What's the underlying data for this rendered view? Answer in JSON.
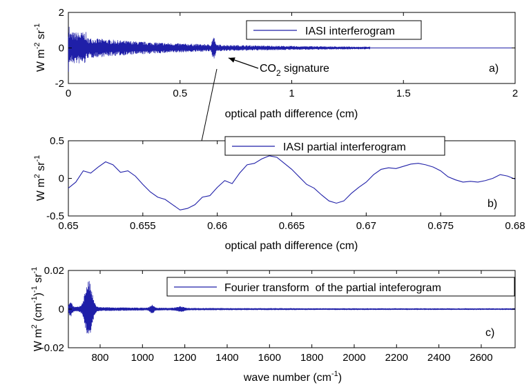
{
  "chart_data": [
    {
      "type": "line",
      "panel_label": "a)",
      "xlabel": "optical path difference (cm)",
      "ylabel": "W m⁻² sr⁻¹",
      "xlim": [
        0,
        2
      ],
      "ylim": [
        -2,
        2
      ],
      "xticks": [
        "0",
        "0.5",
        "1",
        "1.5",
        "2"
      ],
      "yticks": [
        "2",
        "0",
        "-2"
      ],
      "grid": false,
      "legend": "top-right",
      "series": [
        {
          "name": "IASI interferogram",
          "color": "#1f1fa8",
          "shape": "interferogram decaying from about ±1.2 at 0 cm to near 0 beyond 0.8 cm, trace ends near 1.35 cm; flat 0 baseline across full range"
        }
      ],
      "annotation": {
        "text_main": "CO",
        "text_sub": "2",
        "text_rest": " signature",
        "points_to_x": 0.65
      }
    },
    {
      "type": "line",
      "panel_label": "b)",
      "xlabel": "optical path difference (cm)",
      "ylabel": "W m⁻² sr⁻¹",
      "xlim": [
        0.65,
        0.68
      ],
      "ylim": [
        -0.5,
        0.5
      ],
      "xticks": [
        "0.65",
        "0.655",
        "0.66",
        "0.665",
        "0.67",
        "0.675",
        "0.68"
      ],
      "yticks": [
        "0.5",
        "0",
        "-0.5"
      ],
      "grid": false,
      "legend": "top-center",
      "series": [
        {
          "name": "IASI partial interferogram",
          "color": "#1f1fa8",
          "x": [
            0.65,
            0.6505,
            0.651,
            0.6515,
            0.652,
            0.6525,
            0.653,
            0.6535,
            0.654,
            0.6545,
            0.655,
            0.6555,
            0.656,
            0.6565,
            0.657,
            0.6575,
            0.658,
            0.6585,
            0.659,
            0.6595,
            0.66,
            0.6605,
            0.661,
            0.6615,
            0.662,
            0.6625,
            0.663,
            0.6635,
            0.664,
            0.6645,
            0.665,
            0.6655,
            0.666,
            0.6665,
            0.667,
            0.6675,
            0.668,
            0.6685,
            0.669,
            0.6695,
            0.67,
            0.6705,
            0.671,
            0.6715,
            0.672,
            0.6725,
            0.673,
            0.6735,
            0.674,
            0.6745,
            0.675,
            0.6755,
            0.676,
            0.6765,
            0.677,
            0.6775,
            0.678,
            0.6785,
            0.679,
            0.6795,
            0.68
          ],
          "y": [
            -0.13,
            -0.05,
            0.1,
            0.07,
            0.15,
            0.22,
            0.18,
            0.08,
            0.1,
            0.03,
            -0.08,
            -0.18,
            -0.25,
            -0.28,
            -0.35,
            -0.42,
            -0.4,
            -0.35,
            -0.25,
            -0.23,
            -0.12,
            -0.03,
            -0.07,
            0.07,
            0.18,
            0.2,
            0.26,
            0.3,
            0.28,
            0.2,
            0.12,
            0.02,
            -0.08,
            -0.13,
            -0.22,
            -0.3,
            -0.33,
            -0.3,
            -0.2,
            -0.12,
            -0.05,
            0.05,
            0.12,
            0.14,
            0.13,
            0.16,
            0.19,
            0.2,
            0.18,
            0.15,
            0.1,
            0.02,
            -0.02,
            -0.05,
            -0.04,
            -0.05,
            -0.03,
            0.0,
            0.05,
            0.03,
            -0.01
          ]
        }
      ]
    },
    {
      "type": "line",
      "panel_label": "c)",
      "xlabel": "wave number (cm⁻¹)",
      "ylabel": "W m² (cm⁻¹)⁻¹ sr⁻¹",
      "xlim": [
        650,
        2760
      ],
      "ylim": [
        -0.02,
        0.02
      ],
      "xticks": [
        "800",
        "1000",
        "1200",
        "1400",
        "1600",
        "1800",
        "2000",
        "2200",
        "2400",
        "2600"
      ],
      "yticks": [
        "0.02",
        "0",
        "-0.02"
      ],
      "grid": false,
      "legend": "top-right",
      "series": [
        {
          "name": "Fourier transform  of the partial inteferogram",
          "color": "#1f1fa8",
          "shape": "dense oscillation with peak envelope ±0.014 near 745, small bursts ±0.003 near 660 and 1045, low-level ringing elsewhere decaying to near 0"
        }
      ]
    }
  ]
}
